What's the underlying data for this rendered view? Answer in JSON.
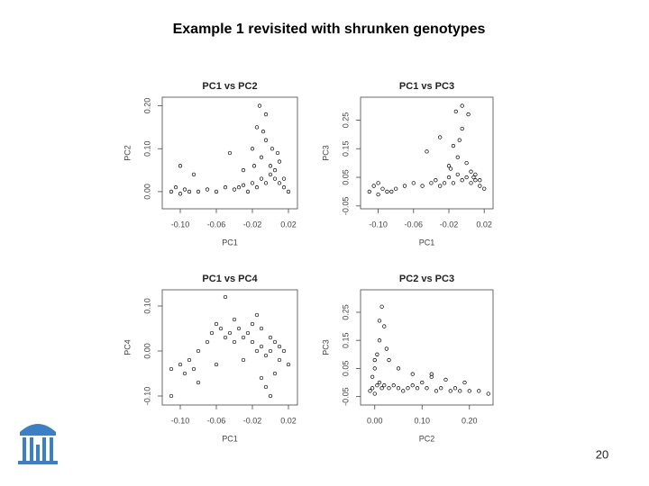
{
  "slide": {
    "title": "Example 1 revisited with shrunken genotypes",
    "page_number": "20"
  },
  "chart_data": [
    {
      "type": "scatter",
      "title": "PC1 vs PC2",
      "x_label": "PC1",
      "y_label": "PC2",
      "xlim": [
        -0.12,
        0.03
      ],
      "ylim": [
        -0.04,
        0.22
      ],
      "xticks": [
        {
          "value": -0.1,
          "label": "-0.10"
        },
        -0.06,
        -0.02,
        0.02
      ],
      "yticks": [
        {
          "value": 0,
          "label": "0.00"
        },
        {
          "value": 0.1,
          "label": "0.10"
        },
        {
          "value": 0.2,
          "label": "0.20"
        }
      ],
      "color": "#000000",
      "x": [
        -0.11,
        -0.105,
        -0.1,
        -0.095,
        -0.09,
        -0.08,
        -0.07,
        -0.06,
        -0.05,
        -0.04,
        -0.035,
        -0.03,
        -0.025,
        -0.02,
        -0.015,
        -0.01,
        -0.005,
        0,
        0.005,
        0.01,
        0.015,
        0.02,
        -0.01,
        -0.005,
        0,
        0.005,
        -0.02,
        -0.015,
        -0.012,
        -0.008,
        -0.045,
        -0.1,
        -0.085,
        -0.005,
        0.002,
        0.01,
        -0.03,
        -0.018,
        0.008,
        0.015
      ],
      "values": [
        0.0,
        0.01,
        -0.005,
        0.005,
        0.0,
        0.0,
        0.005,
        0.0,
        0.01,
        0.005,
        0.01,
        0.015,
        0.0,
        0.02,
        0.01,
        0.03,
        0.02,
        0.04,
        0.03,
        0.02,
        0.01,
        0.0,
        0.08,
        0.12,
        0.06,
        0.05,
        0.1,
        0.15,
        0.2,
        0.14,
        0.09,
        0.06,
        0.04,
        0.18,
        0.1,
        0.07,
        0.05,
        0.06,
        0.09,
        0.03
      ]
    },
    {
      "type": "scatter",
      "title": "PC1 vs PC3",
      "x_label": "PC1",
      "y_label": "PC3",
      "xlim": [
        -0.12,
        0.03
      ],
      "ylim": [
        -0.06,
        0.33
      ],
      "xticks": [
        {
          "value": -0.1,
          "label": "-0.10"
        },
        -0.06,
        -0.02,
        0.02
      ],
      "yticks": [
        -0.05,
        0.05,
        0.15,
        0.25
      ],
      "color": "#000000",
      "x": [
        -0.11,
        -0.105,
        -0.1,
        -0.095,
        -0.09,
        -0.08,
        -0.07,
        -0.06,
        -0.05,
        -0.04,
        -0.035,
        -0.03,
        -0.025,
        -0.02,
        -0.015,
        -0.01,
        -0.005,
        0,
        0.005,
        0.01,
        0.015,
        0.02,
        -0.01,
        -0.005,
        0,
        0.005,
        -0.02,
        -0.015,
        -0.012,
        -0.008,
        -0.045,
        -0.1,
        -0.085,
        -0.005,
        0.002,
        0.01,
        -0.03,
        -0.018,
        0.008,
        0.015
      ],
      "values": [
        0.0,
        0.02,
        -0.01,
        0.01,
        0.0,
        0.01,
        0.02,
        0.03,
        0.02,
        0.03,
        0.04,
        0.02,
        0.03,
        0.05,
        0.03,
        0.06,
        0.04,
        0.05,
        0.03,
        0.04,
        0.02,
        0.01,
        0.12,
        0.3,
        0.1,
        0.07,
        0.09,
        0.16,
        0.28,
        0.18,
        0.14,
        0.03,
        0.0,
        0.22,
        0.27,
        0.06,
        0.19,
        0.08,
        0.05,
        0.04
      ]
    },
    {
      "type": "scatter",
      "title": "PC1 vs PC4",
      "x_label": "PC1",
      "y_label": "PC4",
      "xlim": [
        -0.12,
        0.03
      ],
      "ylim": [
        -0.12,
        0.136
      ],
      "xticks": [
        {
          "value": -0.1,
          "label": "-0.10"
        },
        -0.06,
        -0.02,
        0.02
      ],
      "yticks": [
        {
          "value": -0.1,
          "label": "-0.10"
        },
        {
          "value": 0,
          "label": "0.00"
        },
        {
          "value": 0.1,
          "label": "0.10"
        }
      ],
      "color": "#000000",
      "x": [
        -0.11,
        -0.1,
        -0.095,
        -0.09,
        -0.085,
        -0.08,
        -0.07,
        -0.065,
        -0.06,
        -0.055,
        -0.05,
        -0.045,
        -0.04,
        -0.035,
        -0.03,
        -0.025,
        -0.02,
        -0.015,
        -0.01,
        -0.005,
        0,
        0.005,
        0.01,
        0.015,
        0.02,
        -0.01,
        -0.005,
        0,
        0.005,
        -0.02,
        -0.015,
        -0.03,
        -0.06,
        -0.08,
        -0.11,
        0.0,
        -0.01,
        0.01,
        -0.04,
        -0.05
      ],
      "values": [
        -0.04,
        -0.03,
        -0.05,
        -0.02,
        -0.04,
        0.0,
        0.02,
        0.04,
        0.06,
        0.05,
        0.03,
        0.04,
        0.02,
        0.05,
        0.03,
        0.04,
        0.02,
        0.0,
        0.01,
        -0.01,
        0.0,
        0.02,
        -0.02,
        0.0,
        -0.03,
        -0.06,
        -0.08,
        -0.1,
        -0.05,
        0.06,
        0.08,
        -0.02,
        -0.03,
        -0.07,
        -0.1,
        0.03,
        0.05,
        0.01,
        0.07,
        0.12
      ]
    },
    {
      "type": "scatter",
      "title": "PC2 vs PC3",
      "x_label": "PC2",
      "y_label": "PC3",
      "xlim": [
        -0.03,
        0.25
      ],
      "ylim": [
        -0.08,
        0.33
      ],
      "xticks": [
        {
          "value": 0,
          "label": "0.00"
        },
        {
          "value": 0.1,
          "label": "0.10"
        },
        {
          "value": 0.2,
          "label": "0.20"
        }
      ],
      "yticks": [
        -0.05,
        0.05,
        0.15,
        0.25
      ],
      "color": "#000000",
      "x": [
        -0.01,
        -0.005,
        0,
        0.005,
        0.01,
        0.015,
        0.02,
        0.03,
        0.04,
        0.05,
        0.06,
        0.07,
        0.08,
        0.09,
        0.1,
        0.11,
        0.12,
        0.13,
        0.14,
        0.15,
        0.16,
        0.17,
        0.18,
        0.2,
        0.22,
        0.24,
        0.0,
        0.005,
        0.01,
        0.02,
        0.015,
        -0.005,
        0.025,
        0.03,
        0.05,
        0.08,
        0.12,
        0.19,
        0.01,
        0.0
      ],
      "values": [
        -0.03,
        -0.02,
        -0.04,
        -0.01,
        0.0,
        -0.02,
        -0.01,
        -0.02,
        -0.01,
        -0.02,
        -0.03,
        -0.02,
        -0.01,
        -0.02,
        0.0,
        -0.02,
        0.03,
        -0.03,
        -0.02,
        0.01,
        -0.03,
        -0.02,
        -0.03,
        -0.03,
        -0.03,
        -0.04,
        0.05,
        0.1,
        0.15,
        0.2,
        0.27,
        0.02,
        0.12,
        0.08,
        0.05,
        0.03,
        0.02,
        0.0,
        0.22,
        0.08
      ]
    }
  ]
}
